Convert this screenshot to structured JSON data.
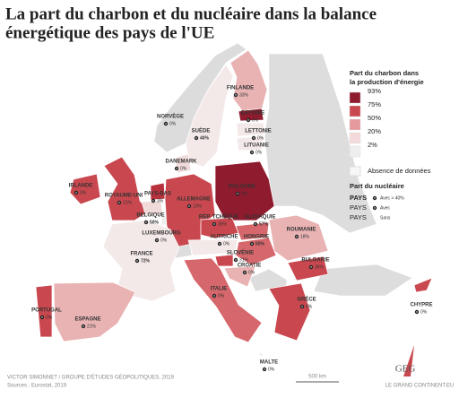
{
  "title_line1": "La part du charbon et du nucléaire dans la balance",
  "title_line2": "énergétique des pays de l'UE",
  "legend": {
    "coal_title_line1": "Part du charbon dans",
    "coal_title_line2": "la production d'énergie",
    "levels": [
      {
        "label": "93%",
        "color": "#8e1b2e"
      },
      {
        "label": "75%",
        "color": "#c9484f"
      },
      {
        "label": "50%",
        "color": "#e5999b"
      },
      {
        "label": "20%",
        "color": "#f3d9d9"
      },
      {
        "label": "2%",
        "color": "#eeeeee"
      }
    ],
    "no_data": "Absence de données",
    "nuclear_title": "Part du nucléaire",
    "nuclear_rows": [
      {
        "country": "PAYS",
        "text": "Avec > 40%"
      },
      {
        "country": "PAYS",
        "text": "Avec"
      },
      {
        "country": "PAYS",
        "text": "Sans"
      }
    ]
  },
  "countries": [
    {
      "name": "NORVÈGE",
      "share": "0%",
      "color": "#dcdcdc"
    },
    {
      "name": "SUÈDE",
      "share": "40%",
      "color": "#f4e9e9",
      "bold": true
    },
    {
      "name": "FINLANDE",
      "share": "33%",
      "color": "#e9b3b4"
    },
    {
      "name": "ESTONIE",
      "share": "0%",
      "color": "#8e1b2e"
    },
    {
      "name": "LETTONIE",
      "share": "0%",
      "color": "#f4e9e9"
    },
    {
      "name": "LITUANIE",
      "share": "0%",
      "color": "#f4e9e9"
    },
    {
      "name": "DANEMARK",
      "share": "0%",
      "color": "#f0dada"
    },
    {
      "name": "IRLANDE",
      "share": "0%",
      "color": "#c9484f"
    },
    {
      "name": "ROYAUME-UNI",
      "share": "21%",
      "color": "#c9484f"
    },
    {
      "name": "PAYS-BAS",
      "share": "3%",
      "color": "#b8323e"
    },
    {
      "name": "BELGIQUE",
      "share": "50%",
      "color": "#f0dada",
      "bold": true
    },
    {
      "name": "LUXEMBOURG",
      "share": "0%",
      "color": "#eeeeee"
    },
    {
      "name": "ALLEMAGNE",
      "share": "13%",
      "color": "#c9484f"
    },
    {
      "name": "POLOGNE",
      "share": "0%",
      "color": "#8e1b2e"
    },
    {
      "name": "RÉP. TCHÈQUE",
      "share": "35%",
      "color": "#c9484f"
    },
    {
      "name": "SLOVAQUIE",
      "share": "57%",
      "color": "#d6676c",
      "bold": true
    },
    {
      "name": "AUTRICHE",
      "share": "0%",
      "color": "#f4e9e9"
    },
    {
      "name": "HONGRIE",
      "share": "50%",
      "color": "#d6676c",
      "bold": true
    },
    {
      "name": "SLOVÉNIE",
      "share": "31%",
      "color": "#c9484f"
    },
    {
      "name": "CROATIE",
      "share": "0%",
      "color": "#e9b3b4"
    },
    {
      "name": "ROUMANIE",
      "share": "18%",
      "color": "#e9b3b4"
    },
    {
      "name": "BULGARIE",
      "share": "36%",
      "color": "#c9484f"
    },
    {
      "name": "GRÈCE",
      "share": "0%",
      "color": "#c9484f"
    },
    {
      "name": "ITALIE",
      "share": "0%",
      "color": "#d6676c"
    },
    {
      "name": "FRANCE",
      "share": "72%",
      "color": "#f4e9e9",
      "bold": true
    },
    {
      "name": "ESPAGNE",
      "share": "21%",
      "color": "#e9b3b4"
    },
    {
      "name": "PORTUGAL",
      "share": "0%",
      "color": "#c9484f"
    },
    {
      "name": "MALTE",
      "share": "0%",
      "color": "#eeeeee"
    },
    {
      "name": "CHYPRE",
      "share": "0%",
      "color": "#c9484f"
    }
  ],
  "footer": {
    "author": "VICTOR SIMONNET / GROUPE D'ÉTUDES GÉOPOLITIQUES, 2019",
    "sources": "Sources : Eurostat, 2019",
    "scale": "500 km",
    "logo": "GEG",
    "site": "LE GRAND CONTINENT.EU"
  }
}
